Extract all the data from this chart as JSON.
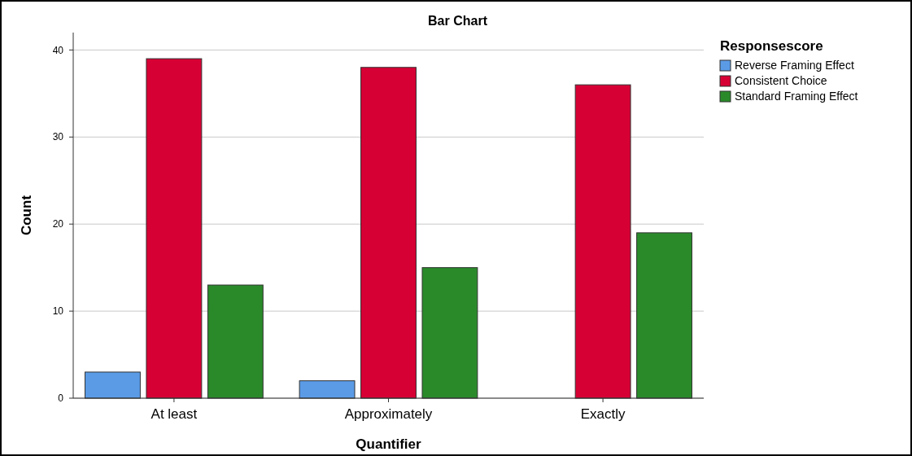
{
  "chart_data": {
    "type": "bar",
    "title": "Bar Chart",
    "xlabel": "Quantifier",
    "ylabel": "Count",
    "legend_title": "Responsescore",
    "categories": [
      "At least",
      "Approximately",
      "Exactly"
    ],
    "series": [
      {
        "name": "Reverse Framing Effect",
        "color": "#5b9be6",
        "values": [
          3,
          2,
          null
        ]
      },
      {
        "name": "Consistent Choice",
        "color": "#d70034",
        "values": [
          39,
          38,
          36
        ]
      },
      {
        "name": "Standard Framing Effect",
        "color": "#2a8a2a",
        "values": [
          13,
          15,
          19
        ]
      }
    ],
    "ylim": [
      0,
      42
    ],
    "yticks": [
      0,
      10,
      20,
      30,
      40
    ],
    "grid": "y",
    "legend": "top right"
  }
}
